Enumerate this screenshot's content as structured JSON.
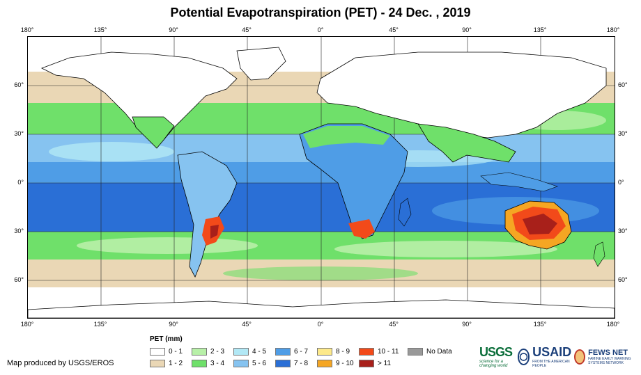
{
  "title": "Potential Evapotranspiration (PET) - 24 Dec. , 2019",
  "axes": {
    "longitude_labels": [
      "180°",
      "135°",
      "90°",
      "45°",
      "0°",
      "45°",
      "90°",
      "135°",
      "180°"
    ],
    "latitude_labels": [
      "60°",
      "30°",
      "0°",
      "30°",
      "60°"
    ]
  },
  "legend": {
    "title": "PET (mm)",
    "items": [
      {
        "label": "0 - 1",
        "color": "#ffffff"
      },
      {
        "label": "1 - 2",
        "color": "#ead7b5"
      },
      {
        "label": "2 - 3",
        "color": "#b8f0a8"
      },
      {
        "label": "3 - 4",
        "color": "#6fe06a"
      },
      {
        "label": "4 - 5",
        "color": "#b2e8f5"
      },
      {
        "label": "5 - 6",
        "color": "#86c3f0"
      },
      {
        "label": "6 - 7",
        "color": "#4f9de6"
      },
      {
        "label": "7 - 8",
        "color": "#2a6fd6"
      },
      {
        "label": "8 - 9",
        "color": "#fde98a"
      },
      {
        "label": "9 - 10",
        "color": "#f5a623"
      },
      {
        "label": "10 - 11",
        "color": "#f24a1a"
      },
      {
        "label": "> 11",
        "color": "#a8201a"
      },
      {
        "label": "No Data",
        "color": "#999999"
      }
    ]
  },
  "credit": "Map produced by USGS/EROS",
  "logos": {
    "usgs": "USGS",
    "usgs_tagline": "science for a changing world",
    "usaid": "USAID",
    "usaid_tagline": "FROM THE AMERICAN PEOPLE",
    "fews": "FEWS NET",
    "fews_tagline": "FAMINE EARLY WARNING SYSTEMS NETWORK"
  }
}
